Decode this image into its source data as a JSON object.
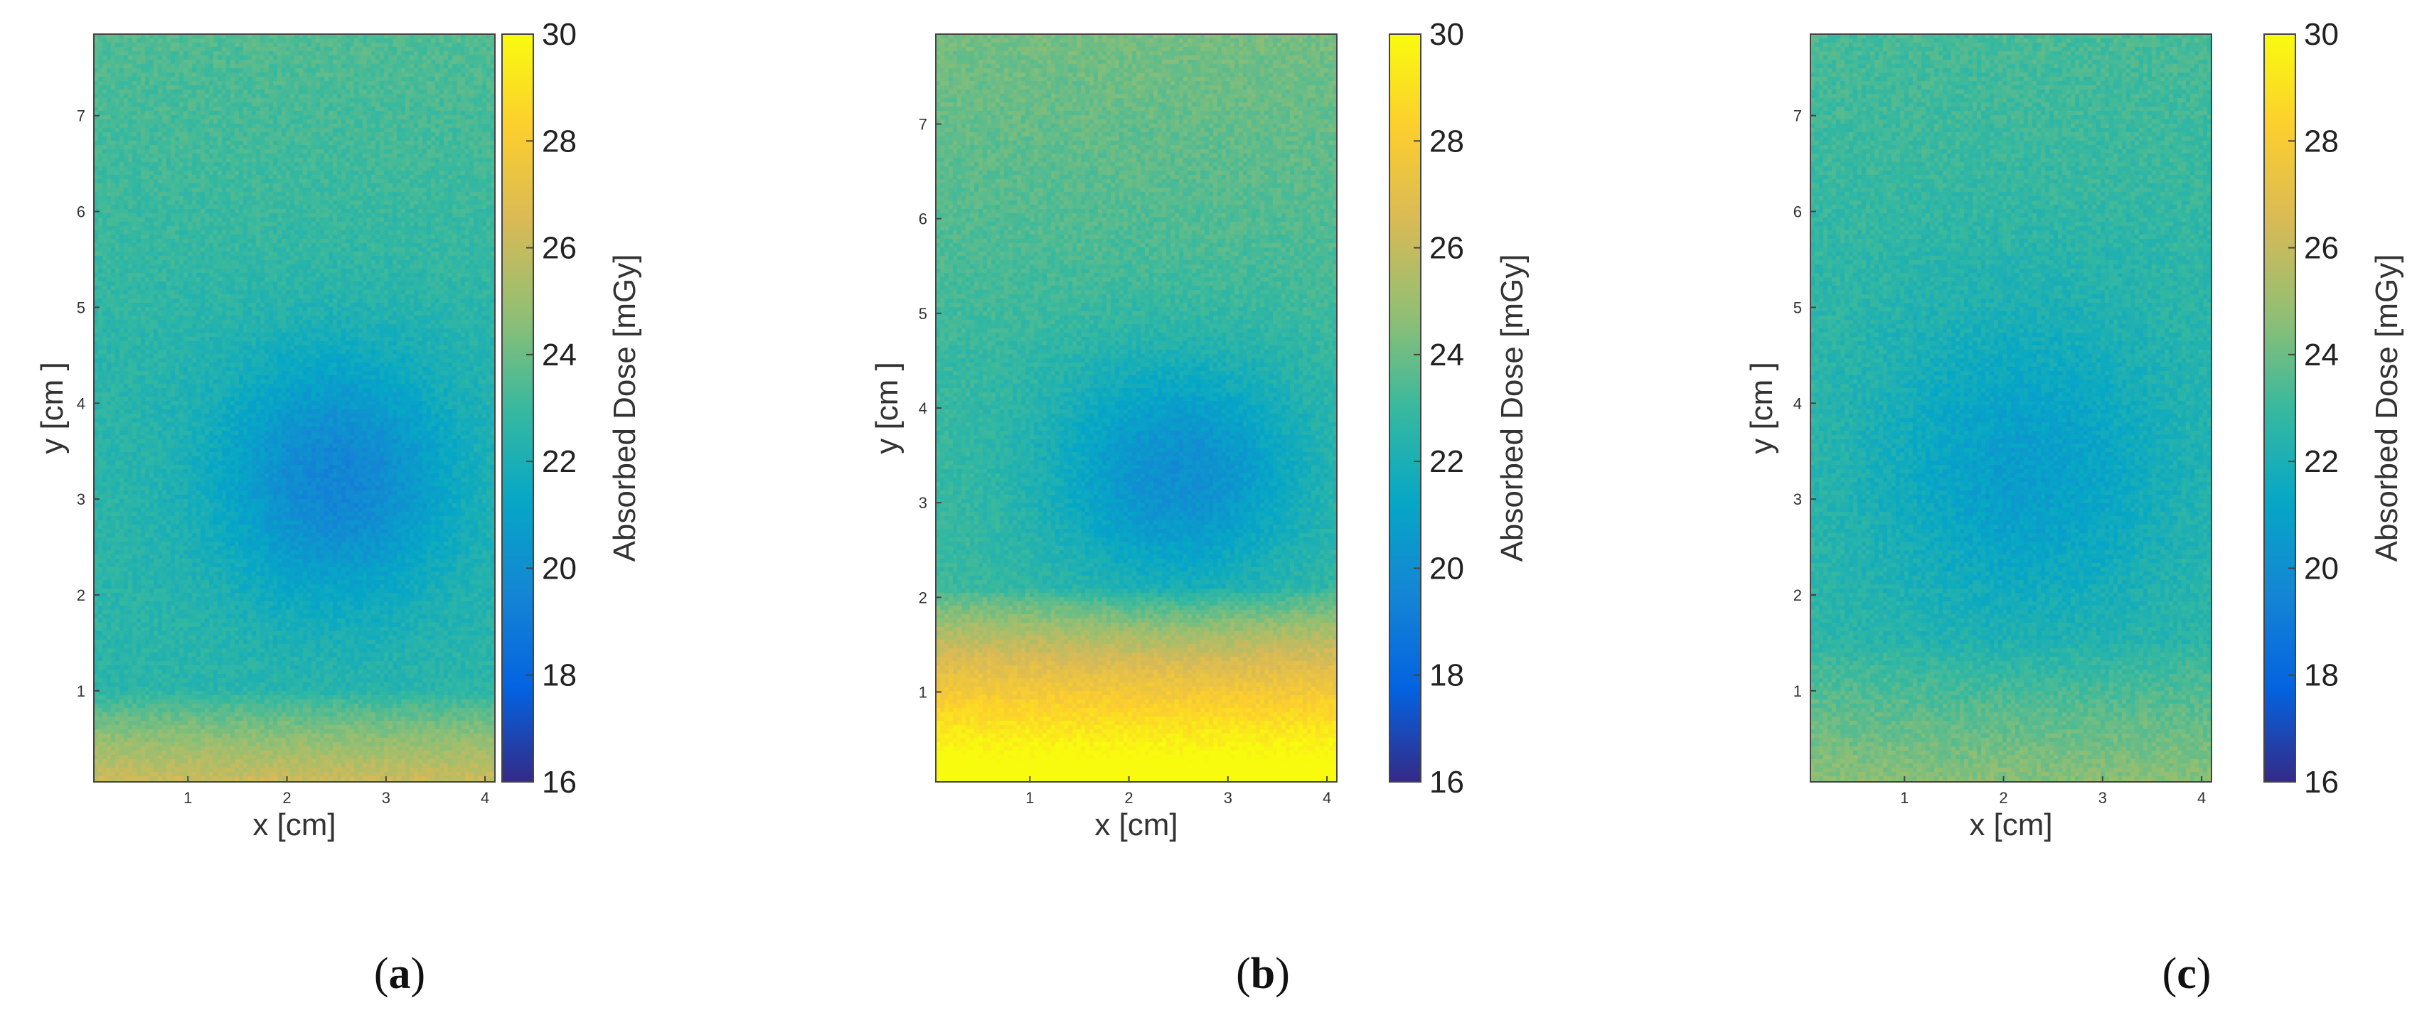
{
  "chart_data": [
    {
      "type": "heatmap",
      "panel_label": {
        "open": "(",
        "letter": "a",
        "close": ")"
      },
      "xlabel": "x [cm]",
      "ylabel": "y [cm ]",
      "xlim": [
        0.05,
        4.1
      ],
      "ylim": [
        0.05,
        7.85
      ],
      "xticks": [
        1,
        2,
        3,
        4
      ],
      "yticks": [
        1,
        2,
        3,
        4,
        5,
        6,
        7
      ],
      "colorbar": {
        "label": "Absorbed Dose [mGy]",
        "range": [
          16,
          30
        ],
        "ticks": [
          16,
          18,
          20,
          22,
          24,
          26,
          28,
          30
        ],
        "colormap": "parula"
      },
      "field": {
        "base": 22.6,
        "cold_spot": {
          "x": 2.5,
          "y": 3.2,
          "rx": 1.2,
          "ry": 1.3,
          "depth": 3.1
        },
        "top_rise": {
          "from_y": 4.5,
          "to_y": 7.85,
          "amount": 0.9
        },
        "bottom_rise": {
          "from_y": 1.0,
          "amount": 3.6
        },
        "noise": 0.45
      }
    },
    {
      "type": "heatmap",
      "panel_label": {
        "open": "(",
        "letter": "b",
        "close": ")"
      },
      "xlabel": "x [cm]",
      "ylabel": "y [cm ]",
      "xlim": [
        0.05,
        4.1
      ],
      "ylim": [
        0.05,
        7.95
      ],
      "xticks": [
        1,
        2,
        3,
        4
      ],
      "yticks": [
        1,
        2,
        3,
        4,
        5,
        6,
        7
      ],
      "colorbar": {
        "label": "Absorbed Dose [mGy]",
        "range": [
          16,
          30
        ],
        "ticks": [
          16,
          18,
          20,
          22,
          24,
          26,
          28,
          30
        ],
        "colormap": "parula"
      },
      "field": {
        "base": 23.0,
        "cold_spot": {
          "x": 2.5,
          "y": 3.3,
          "rx": 1.3,
          "ry": 1.2,
          "depth": 3.0
        },
        "top_rise": {
          "from_y": 4.5,
          "to_y": 7.95,
          "amount": 1.2
        },
        "bottom_rise": {
          "from_y": 2.1,
          "amount": 8.0
        },
        "noise": 0.45
      }
    },
    {
      "type": "heatmap",
      "panel_label": {
        "open": "(",
        "letter": "c",
        "close": ")"
      },
      "xlabel": "x [cm]",
      "ylabel": "y [cm ]",
      "xlim": [
        0.05,
        4.1
      ],
      "ylim": [
        0.05,
        7.85
      ],
      "xticks": [
        1,
        2,
        3,
        4
      ],
      "yticks": [
        1,
        2,
        3,
        4,
        5,
        6,
        7
      ],
      "colorbar": {
        "label": "Absorbed Dose [mGy]",
        "range": [
          16,
          30
        ],
        "ticks": [
          16,
          18,
          20,
          22,
          24,
          26,
          28,
          30
        ],
        "colormap": "parula"
      },
      "field": {
        "base": 22.8,
        "cold_spot": {
          "x": 2.2,
          "y": 3.3,
          "rx": 1.6,
          "ry": 1.7,
          "depth": 2.0
        },
        "top_rise": {
          "from_y": 5.5,
          "to_y": 7.85,
          "amount": 0.5
        },
        "bottom_rise": {
          "from_y": 1.5,
          "amount": 1.8
        },
        "noise": 0.5
      }
    }
  ]
}
